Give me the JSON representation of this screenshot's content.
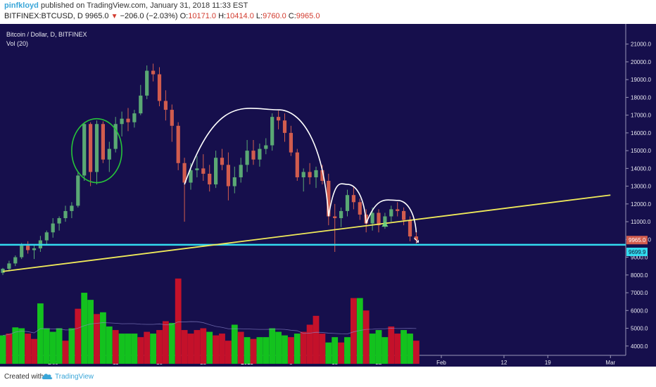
{
  "header": {
    "username": "pinfkloyd",
    "published_text": "published on TradingView.com, January 31, 2018 11:33 EST",
    "symbol": "BITFINEX:BTCUSD, D",
    "last": "9965.0",
    "change": "−206.0 (−2.03%)",
    "o_label": "O:",
    "o_value": "10171.0",
    "h_label": "H:",
    "h_value": "10414.0",
    "l_label": "L:",
    "l_value": "9760.0",
    "c_label": "C:",
    "c_value": "9965.0"
  },
  "legend": {
    "title": "Bitcoin / Dollar, D, BITFINEX",
    "volume": "Vol (20)"
  },
  "footer": {
    "created_with": "Created with",
    "brand": "TradingView"
  },
  "colors": {
    "background": "#160f4c",
    "up": "#5aa874",
    "down": "#d15c4e",
    "vol_up": "#13c21e",
    "vol_down": "#c4112a",
    "trendline": "#f0ea5a",
    "support": "#33dcf0",
    "arcs": "#ffffff",
    "ellipse": "#26c43a"
  },
  "chart_data": {
    "type": "candlestick",
    "series_name": "BITFINEX:BTCUSD",
    "price_axis": {
      "ticks": [
        "21000.0",
        "20000.0",
        "19000.0",
        "18000.0",
        "17000.0",
        "16000.0",
        "15000.0",
        "14000.0",
        "13000.0",
        "12000.0",
        "11000.0",
        "10000.0",
        "9000.0",
        "8000.0",
        "7000.0",
        "6000.0",
        "5000.0",
        "4000.0"
      ],
      "last_price_label": "9965.0",
      "support_label": "9699.9",
      "ylim": [
        3000,
        21700
      ]
    },
    "time_axis": {
      "labels": [
        "Dec",
        "11",
        "18",
        "25",
        "2018",
        "8",
        "15",
        "22",
        "Feb",
        "12",
        "19",
        "Mar"
      ],
      "label_index": [
        8,
        18,
        25,
        32,
        39,
        46,
        53,
        60,
        70,
        80,
        87,
        97
      ]
    },
    "candles": [
      [
        8120,
        8400,
        8000,
        8350
      ],
      [
        8350,
        8800,
        8200,
        8650
      ],
      [
        8650,
        9100,
        8500,
        9000
      ],
      [
        9000,
        9800,
        8900,
        9650
      ],
      [
        9650,
        9900,
        9200,
        9400
      ],
      [
        9400,
        9700,
        8900,
        9500
      ],
      [
        9500,
        10200,
        9300,
        9950
      ],
      [
        9950,
        10500,
        9700,
        10400
      ],
      [
        10400,
        11200,
        10100,
        10900
      ],
      [
        10900,
        11300,
        10500,
        11200
      ],
      [
        11200,
        11900,
        11000,
        11600
      ],
      [
        11600,
        12100,
        11200,
        11900
      ],
      [
        11900,
        13800,
        11800,
        13600
      ],
      [
        13600,
        16600,
        13300,
        16500
      ],
      [
        16500,
        16600,
        13000,
        13800
      ],
      [
        13800,
        16700,
        13100,
        16500
      ],
      [
        16500,
        16650,
        14300,
        14500
      ],
      [
        14500,
        15500,
        13800,
        15100
      ],
      [
        15100,
        16900,
        14900,
        16500
      ],
      [
        16500,
        17200,
        15800,
        16800
      ],
      [
        16800,
        17400,
        16100,
        16600
      ],
      [
        16600,
        17300,
        16300,
        17100
      ],
      [
        17100,
        18700,
        17000,
        18100
      ],
      [
        18100,
        19800,
        17900,
        19500
      ],
      [
        19500,
        19900,
        18900,
        19300
      ],
      [
        19300,
        19700,
        17500,
        17800
      ],
      [
        17800,
        18400,
        16700,
        17300
      ],
      [
        17300,
        17600,
        15500,
        16400
      ],
      [
        16400,
        16600,
        13900,
        14300
      ],
      [
        14300,
        14600,
        11000,
        13200
      ],
      [
        13200,
        14300,
        12800,
        13900
      ],
      [
        13900,
        14700,
        13500,
        14000
      ],
      [
        14000,
        14800,
        13300,
        13700
      ],
      [
        13700,
        14200,
        12700,
        13100
      ],
      [
        13100,
        15000,
        12900,
        14600
      ],
      [
        14600,
        15100,
        13900,
        14200
      ],
      [
        14200,
        14900,
        12200,
        13000
      ],
      [
        13000,
        14100,
        12600,
        13500
      ],
      [
        13500,
        14600,
        13200,
        14200
      ],
      [
        14200,
        15600,
        13800,
        15000
      ],
      [
        15000,
        15600,
        14200,
        14500
      ],
      [
        14500,
        15400,
        14100,
        15100
      ],
      [
        15100,
        15700,
        14800,
        15300
      ],
      [
        15300,
        17100,
        15000,
        16900
      ],
      [
        16900,
        17250,
        16200,
        16700
      ],
      [
        16700,
        17100,
        15500,
        16000
      ],
      [
        16000,
        16400,
        14700,
        14900
      ],
      [
        14900,
        15100,
        13300,
        13500
      ],
      [
        13500,
        14000,
        12700,
        13800
      ],
      [
        13800,
        14300,
        13100,
        13500
      ],
      [
        13500,
        14100,
        12900,
        13900
      ],
      [
        13900,
        14200,
        13100,
        13300
      ],
      [
        13300,
        13700,
        10800,
        11300
      ],
      [
        11300,
        12000,
        9300,
        11200
      ],
      [
        11200,
        11800,
        10700,
        11600
      ],
      [
        11600,
        12800,
        11300,
        12500
      ],
      [
        12500,
        13000,
        11700,
        12100
      ],
      [
        12100,
        12300,
        11100,
        11400
      ],
      [
        11400,
        11700,
        10400,
        10900
      ],
      [
        10900,
        11800,
        10500,
        11500
      ],
      [
        11500,
        11700,
        10400,
        10800
      ],
      [
        10800,
        11500,
        10600,
        11300
      ],
      [
        11300,
        11900,
        11000,
        11700
      ],
      [
        11700,
        12100,
        11300,
        11600
      ],
      [
        11600,
        11800,
        10800,
        11100
      ],
      [
        11100,
        11300,
        9900,
        10171
      ],
      [
        10171,
        10414,
        9760,
        9965
      ]
    ],
    "volume": [
      [
        4600,
        "up"
      ],
      [
        4700,
        "down"
      ],
      [
        5050,
        "up"
      ],
      [
        5000,
        "up"
      ],
      [
        4700,
        "down"
      ],
      [
        4400,
        "down"
      ],
      [
        6400,
        "up"
      ],
      [
        5000,
        "up"
      ],
      [
        4800,
        "up"
      ],
      [
        5000,
        "up"
      ],
      [
        4300,
        "down"
      ],
      [
        5000,
        "up"
      ],
      [
        6100,
        "down"
      ],
      [
        7000,
        "up"
      ],
      [
        6600,
        "up"
      ],
      [
        5800,
        "down"
      ],
      [
        5900,
        "up"
      ],
      [
        5100,
        "up"
      ],
      [
        4900,
        "down"
      ],
      [
        4700,
        "up"
      ],
      [
        4700,
        "up"
      ],
      [
        4700,
        "up"
      ],
      [
        4500,
        "down"
      ],
      [
        4800,
        "down"
      ],
      [
        4700,
        "up"
      ],
      [
        4900,
        "down"
      ],
      [
        5400,
        "down"
      ],
      [
        5300,
        "up"
      ],
      [
        7800,
        "down"
      ],
      [
        4900,
        "down"
      ],
      [
        4700,
        "down"
      ],
      [
        4900,
        "down"
      ],
      [
        5000,
        "down"
      ],
      [
        4800,
        "up"
      ],
      [
        4600,
        "down"
      ],
      [
        4700,
        "down"
      ],
      [
        4300,
        "down"
      ],
      [
        5200,
        "up"
      ],
      [
        4800,
        "down"
      ],
      [
        4500,
        "up"
      ],
      [
        4400,
        "down"
      ],
      [
        4500,
        "up"
      ],
      [
        4500,
        "up"
      ],
      [
        5000,
        "up"
      ],
      [
        4800,
        "up"
      ],
      [
        4600,
        "up"
      ],
      [
        4500,
        "down"
      ],
      [
        4700,
        "up"
      ],
      [
        4800,
        "down"
      ],
      [
        5200,
        "down"
      ],
      [
        5700,
        "down"
      ],
      [
        4700,
        "down"
      ],
      [
        4200,
        "up"
      ],
      [
        4500,
        "up"
      ],
      [
        4200,
        "down"
      ],
      [
        4500,
        "up"
      ],
      [
        6700,
        "down"
      ],
      [
        6700,
        "up"
      ],
      [
        6000,
        "down"
      ],
      [
        4700,
        "up"
      ],
      [
        4900,
        "up"
      ],
      [
        4500,
        "up"
      ],
      [
        5100,
        "down"
      ],
      [
        4700,
        "down"
      ],
      [
        4900,
        "up"
      ],
      [
        4700,
        "up"
      ],
      [
        4300,
        "down"
      ]
    ],
    "annotations": {
      "trendline": [
        [
          0,
          8200
        ],
        [
          97,
          12500
        ]
      ],
      "support_level": 9699.9,
      "ellipse": {
        "center_index": 15,
        "center_price": 15000,
        "index_radius": 4,
        "price_radius": 1800
      },
      "arcs": [
        {
          "from": [
            29,
            13100
          ],
          "peak": [
            44,
            17300
          ],
          "to": [
            52,
            11300
          ]
        },
        {
          "from": [
            52,
            11300
          ],
          "peak": [
            55,
            13100
          ],
          "to": [
            58,
            10900
          ]
        },
        {
          "from": [
            58,
            10900
          ],
          "peak": [
            63,
            12200
          ],
          "to": [
            66,
            10400
          ]
        }
      ],
      "marker": {
        "index": 61,
        "price": 10800
      }
    }
  }
}
